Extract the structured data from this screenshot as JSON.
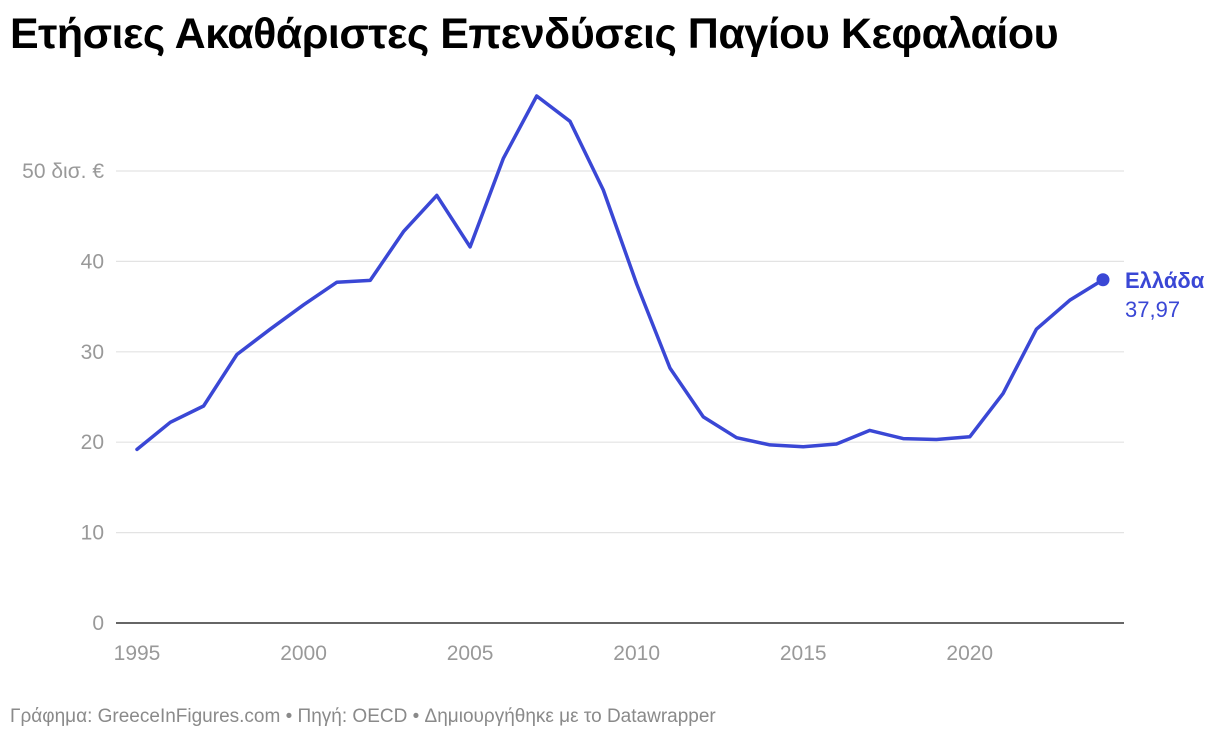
{
  "chart_data": {
    "type": "line",
    "title": "Ετήσιες Ακαθάριστες Επενδύσεις Παγίου Κεφαλαίου",
    "xlabel": "",
    "ylabel": "",
    "x_ticks": [
      "1995",
      "2000",
      "2005",
      "2010",
      "2015",
      "2020"
    ],
    "y_ticks": [
      "0",
      "10",
      "20",
      "30",
      "40",
      "50 δισ. €"
    ],
    "xlim": [
      1995,
      2024
    ],
    "ylim": [
      0,
      58
    ],
    "grid": true,
    "series": [
      {
        "name": "Ελλάδα",
        "color": "#3a47d5",
        "x": [
          1995,
          1996,
          1997,
          1998,
          1999,
          2000,
          2001,
          2002,
          2003,
          2004,
          2005,
          2006,
          2007,
          2008,
          2009,
          2010,
          2011,
          2012,
          2013,
          2014,
          2015,
          2016,
          2017,
          2018,
          2019,
          2020,
          2021,
          2022,
          2023,
          2024
        ],
        "values": [
          19.2,
          22.2,
          24.0,
          29.7,
          32.5,
          35.2,
          37.7,
          37.9,
          43.3,
          47.3,
          41.6,
          51.4,
          58.3,
          55.5,
          47.9,
          37.5,
          28.2,
          22.8,
          20.5,
          19.7,
          19.5,
          19.8,
          21.3,
          20.4,
          20.3,
          20.6,
          25.4,
          32.5,
          35.7,
          37.97
        ],
        "end_label": "Ελλάδα",
        "end_value_label": "37,97"
      }
    ]
  },
  "footer": "Γράφημα: GreeceInFigures.com • Πηγή: OECD • Δημιουργήθηκε με το Datawrapper"
}
